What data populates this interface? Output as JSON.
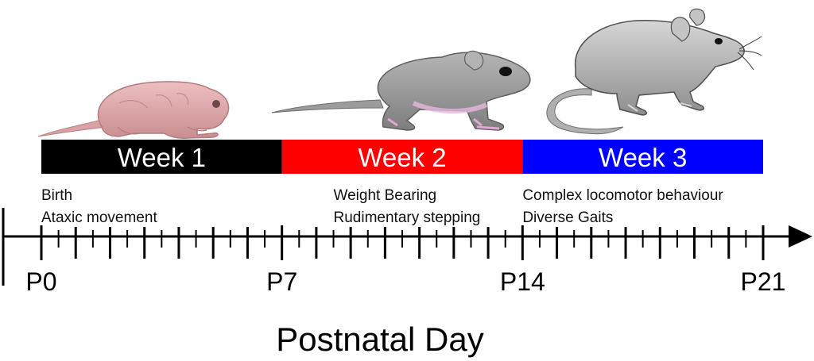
{
  "weeks": [
    {
      "label": "Week 1",
      "start_day": 0,
      "end_day": 7,
      "fill": "#000000",
      "text_color": "#ffffff"
    },
    {
      "label": "Week 2",
      "start_day": 7,
      "end_day": 14,
      "fill": "#ff0000",
      "text_color": "#ffffff"
    },
    {
      "label": "Week 3",
      "start_day": 14,
      "end_day": 21,
      "fill": "#0000ff",
      "text_color": "#ffffff"
    }
  ],
  "milestones": [
    {
      "day": 0,
      "lines": [
        "Birth",
        "Ataxic movement"
      ]
    },
    {
      "day": 8.5,
      "lines": [
        "Weight Bearing",
        "Rudimentary stepping"
      ]
    },
    {
      "day": 14,
      "lines": [
        "Complex locomotor behaviour",
        "Diverse Gaits"
      ]
    }
  ],
  "axis": {
    "title": "Postnatal Day",
    "min_day": 0,
    "max_day": 21,
    "labels": [
      {
        "day": 0,
        "text": "P0"
      },
      {
        "day": 7,
        "text": "P7"
      },
      {
        "day": 14,
        "text": "P14"
      },
      {
        "day": 21,
        "text": "P21"
      }
    ]
  },
  "mice": [
    {
      "stage": "week-1-pup",
      "color": "#e0a9ab"
    },
    {
      "stage": "week-2-juvenile",
      "color": "#9a9a9a"
    },
    {
      "stage": "week-3-adult",
      "color": "#a8a8a8"
    }
  ]
}
